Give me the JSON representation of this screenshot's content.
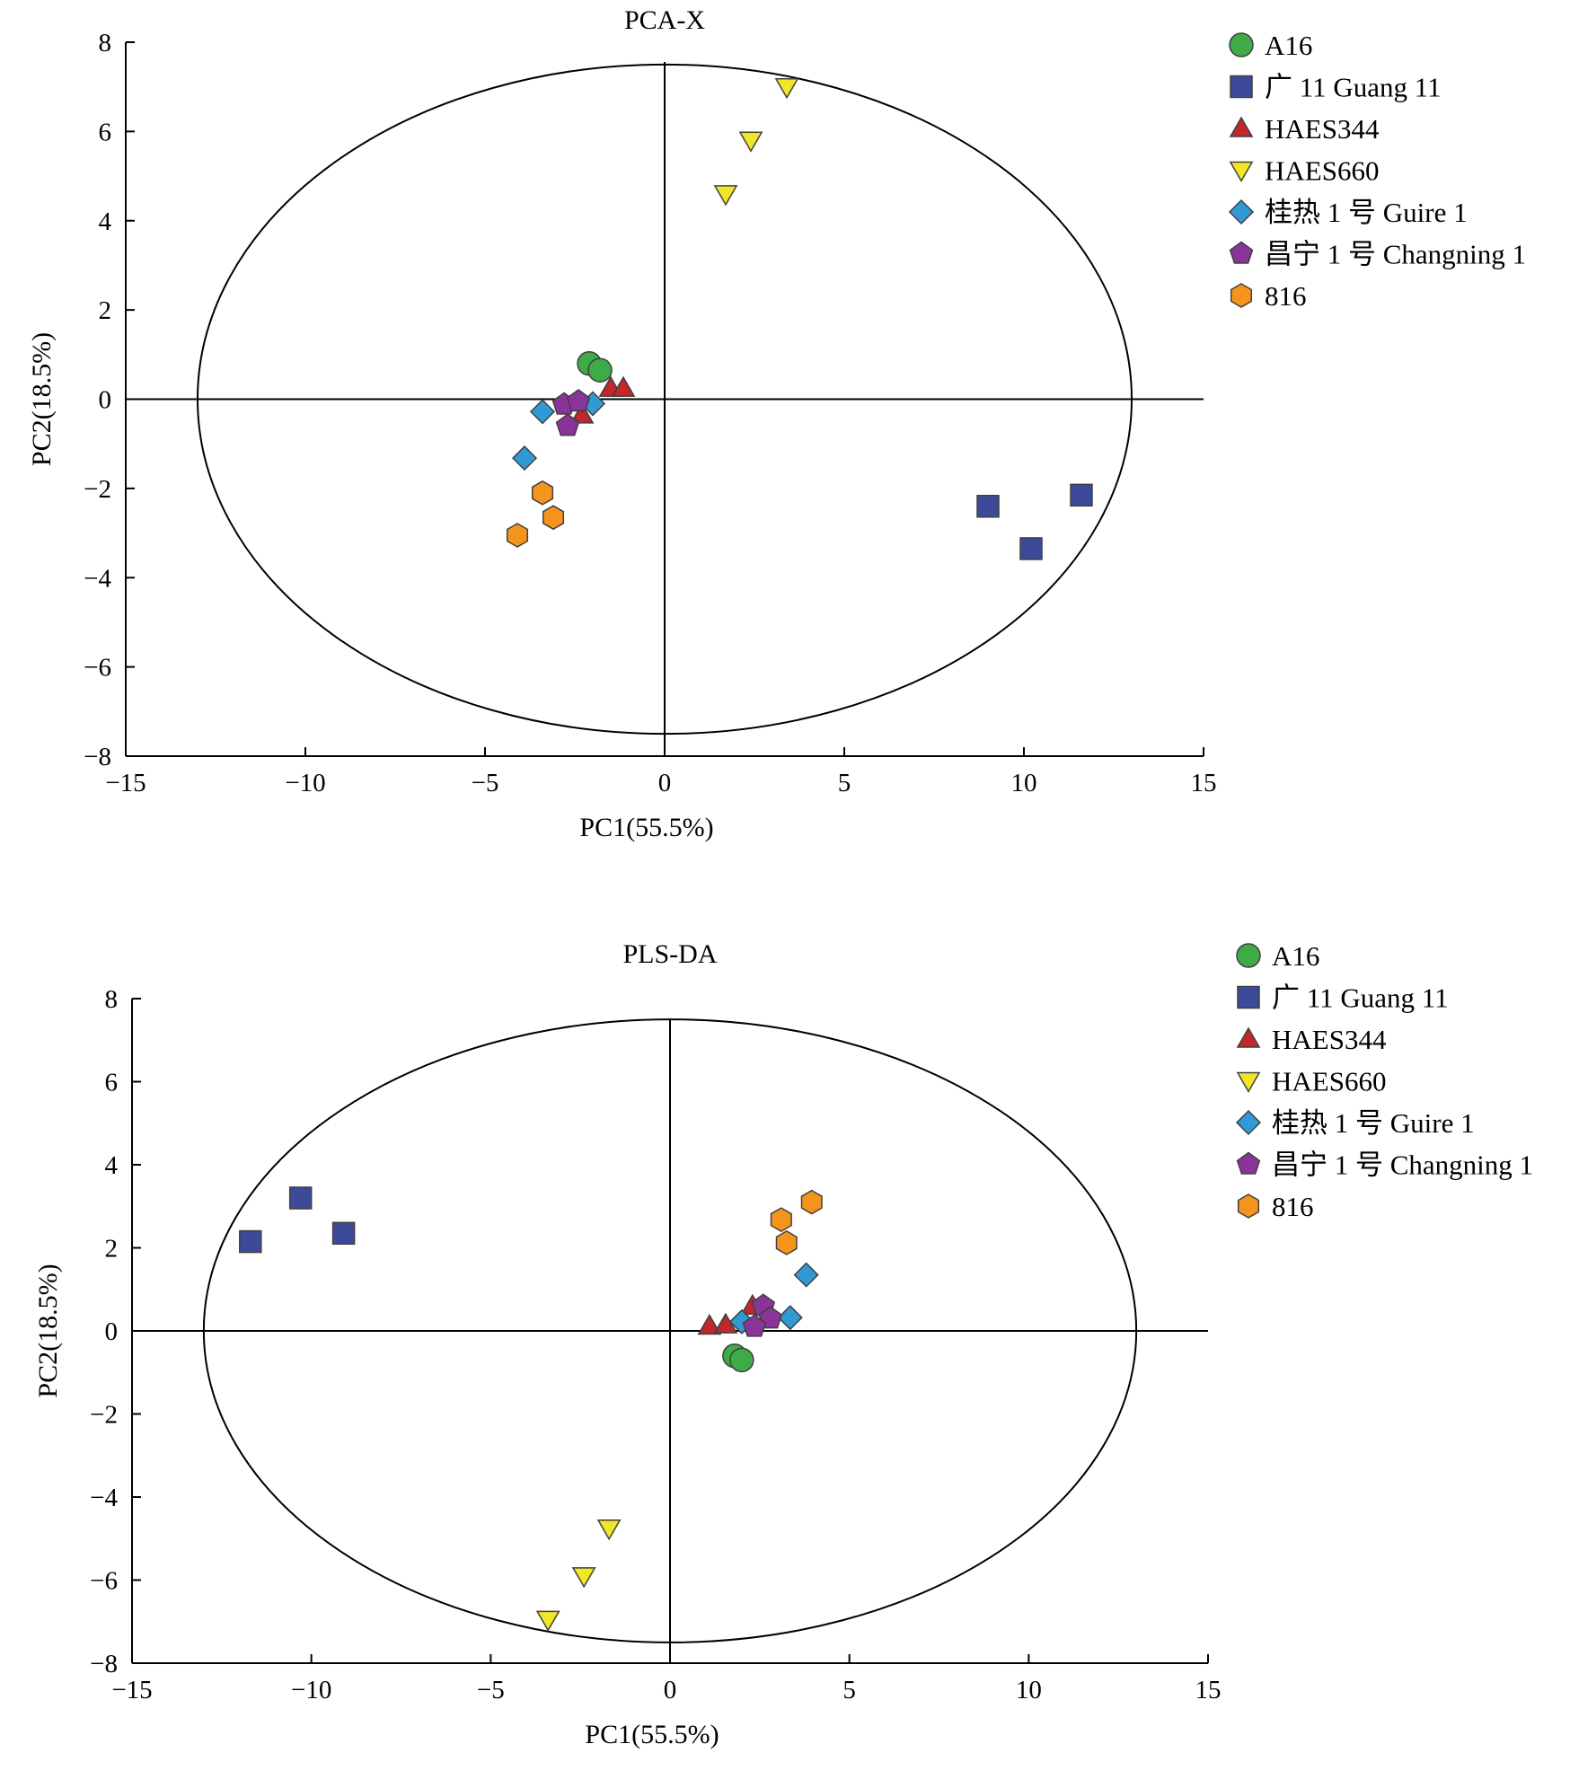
{
  "chart_data": [
    {
      "type": "scatter",
      "title": "PCA-X",
      "xlabel": "PC1(55.5%)",
      "ylabel": "PC2(18.5%)",
      "xlim": [
        -15,
        15
      ],
      "ylim": [
        -8,
        8
      ],
      "xticks": [
        "−15",
        "−10",
        "−5",
        "0",
        "5",
        "10",
        "15"
      ],
      "yticks": [
        "8",
        "6",
        "4",
        "2",
        "0",
        "−2",
        "−4",
        "−6",
        "−8"
      ],
      "ellipse": {
        "rx": 13,
        "ry": 7.5
      },
      "legend_position": "top-right, outside plot",
      "series": [
        {
          "name": "A16",
          "marker": "circle",
          "color": "#3fab47",
          "points": [
            [
              -2.1,
              0.8
            ],
            [
              -1.8,
              0.65
            ]
          ]
        },
        {
          "name": "广 11 Guang 11",
          "marker": "square",
          "color": "#3d4a9a",
          "points": [
            [
              9.0,
              -2.4
            ],
            [
              10.2,
              -3.35
            ],
            [
              11.6,
              -2.15
            ]
          ]
        },
        {
          "name": "HAES344",
          "marker": "triangle-up",
          "color": "#c1272d",
          "points": [
            [
              -1.5,
              0.25
            ],
            [
              -1.15,
              0.25
            ],
            [
              -2.3,
              -0.35
            ]
          ]
        },
        {
          "name": "HAES660",
          "marker": "triangle-down",
          "color": "#f2e629",
          "points": [
            [
              1.7,
              4.6
            ],
            [
              2.4,
              5.8
            ],
            [
              3.4,
              7.0
            ]
          ]
        },
        {
          "name": "桂热 1 号 Guire 1",
          "marker": "diamond",
          "color": "#2f9ad6",
          "points": [
            [
              -3.4,
              -0.28
            ],
            [
              -3.9,
              -1.32
            ],
            [
              -2.0,
              -0.1
            ]
          ]
        },
        {
          "name": "昌宁 1 号 Changning 1",
          "marker": "pentagon",
          "color": "#8a349a",
          "points": [
            [
              -2.8,
              -0.12
            ],
            [
              -2.4,
              -0.05
            ],
            [
              -2.7,
              -0.6
            ]
          ]
        },
        {
          "name": "816",
          "marker": "hexagon",
          "color": "#f5941d",
          "points": [
            [
              -3.4,
              -2.1
            ],
            [
              -3.1,
              -2.65
            ],
            [
              -4.1,
              -3.05
            ]
          ]
        }
      ]
    },
    {
      "type": "scatter",
      "title": "PLS-DA",
      "xlabel": "PC1(55.5%)",
      "ylabel": "PC2(18.5%)",
      "xlim": [
        -15,
        15
      ],
      "ylim": [
        -8,
        8
      ],
      "xticks": [
        "−15",
        "−10",
        "−5",
        "0",
        "5",
        "10",
        "15"
      ],
      "yticks": [
        "8",
        "6",
        "4",
        "2",
        "0",
        "−2",
        "−4",
        "−6",
        "−8"
      ],
      "ellipse": {
        "rx": 13,
        "ry": 7.5
      },
      "legend_position": "top-right, outside plot",
      "series": [
        {
          "name": "A16",
          "marker": "circle",
          "color": "#3fab47",
          "points": [
            [
              1.8,
              -0.6
            ],
            [
              2.0,
              -0.7
            ]
          ]
        },
        {
          "name": "广 11 Guang 11",
          "marker": "square",
          "color": "#3d4a9a",
          "points": [
            [
              -11.7,
              2.15
            ],
            [
              -10.3,
              3.2
            ],
            [
              -9.1,
              2.35
            ]
          ]
        },
        {
          "name": "HAES344",
          "marker": "triangle-up",
          "color": "#c1272d",
          "points": [
            [
              1.1,
              0.12
            ],
            [
              1.55,
              0.15
            ],
            [
              2.3,
              0.6
            ]
          ]
        },
        {
          "name": "HAES660",
          "marker": "triangle-down",
          "color": "#f2e629",
          "points": [
            [
              -1.7,
              -4.75
            ],
            [
              -2.4,
              -5.9
            ],
            [
              -3.4,
              -6.95
            ]
          ]
        },
        {
          "name": "桂热 1 号 Guire 1",
          "marker": "diamond",
          "color": "#2f9ad6",
          "points": [
            [
              3.8,
              1.35
            ],
            [
              3.35,
              0.32
            ],
            [
              2.0,
              0.22
            ]
          ]
        },
        {
          "name": "昌宁 1 号 Changning 1",
          "marker": "pentagon",
          "color": "#8a349a",
          "points": [
            [
              2.6,
              0.6
            ],
            [
              2.8,
              0.3
            ],
            [
              2.35,
              0.1
            ]
          ]
        },
        {
          "name": "816",
          "marker": "hexagon",
          "color": "#f5941d",
          "points": [
            [
              3.95,
              3.1
            ],
            [
              3.1,
              2.68
            ],
            [
              3.25,
              2.12
            ]
          ]
        }
      ]
    }
  ]
}
